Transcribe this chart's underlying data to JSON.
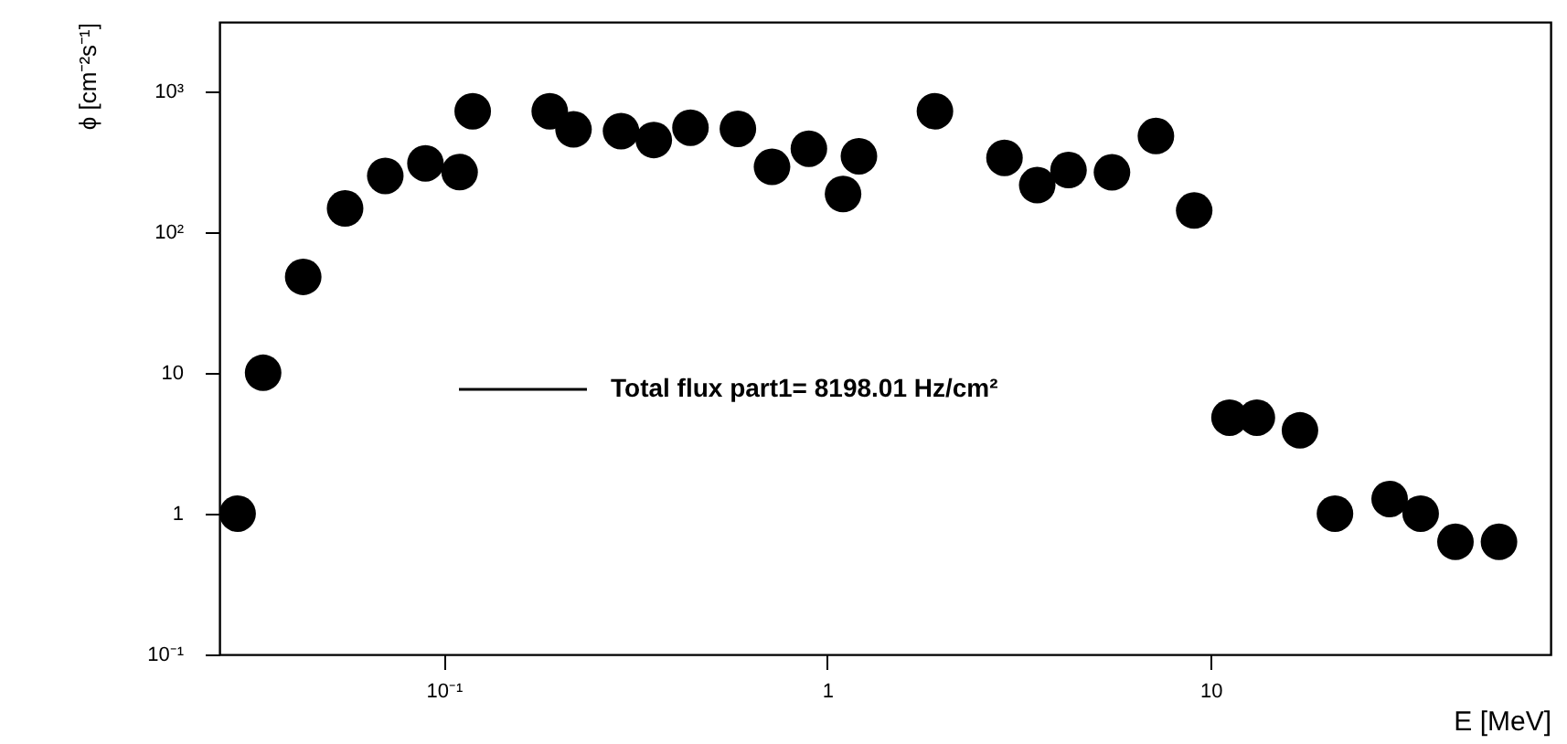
{
  "chart_data": {
    "type": "scatter",
    "xlabel": "E [MeV]",
    "ylabel": "ϕ [cm⁻²s⁻¹]",
    "log": "xy",
    "marker": "circle",
    "legend": "left",
    "xlim": [
      0.026,
      77
    ],
    "ylim": [
      0.1,
      3100
    ],
    "xticks": [
      {
        "value": 0.1,
        "label": "10⁻¹"
      },
      1,
      10
    ],
    "yticks": [
      {
        "value": 0.1,
        "label": "10⁻¹"
      },
      1,
      10,
      {
        "value": 100,
        "label": "10²"
      },
      {
        "value": 1000,
        "label": "10³"
      }
    ],
    "series": [
      {
        "name": "Total flux part1= 8198.01 Hz/cm²",
        "color": "#000000",
        "x": [
          0.029,
          0.0338,
          0.043,
          0.0553,
          0.0704,
          0.0896,
          0.11,
          0.119,
          0.189,
          0.218,
          0.29,
          0.353,
          0.44,
          0.585,
          0.718,
          0.896,
          1.1,
          1.21,
          1.91,
          2.9,
          3.53,
          4.26,
          5.53,
          7.2,
          9.06,
          11.2,
          13.2,
          17.1,
          21.1,
          29.3,
          35.3,
          43.5,
          56.5
        ],
        "values": [
          1,
          10,
          48,
          147,
          250,
          307,
          266,
          720,
          720,
          535,
          520,
          450,
          550,
          540,
          290,
          390,
          186,
          345,
          720,
          336,
          215,
          275,
          265,
          480,
          142,
          4.8,
          4.8,
          3.9,
          1,
          1.27,
          1,
          0.63,
          0.63
        ]
      }
    ]
  }
}
